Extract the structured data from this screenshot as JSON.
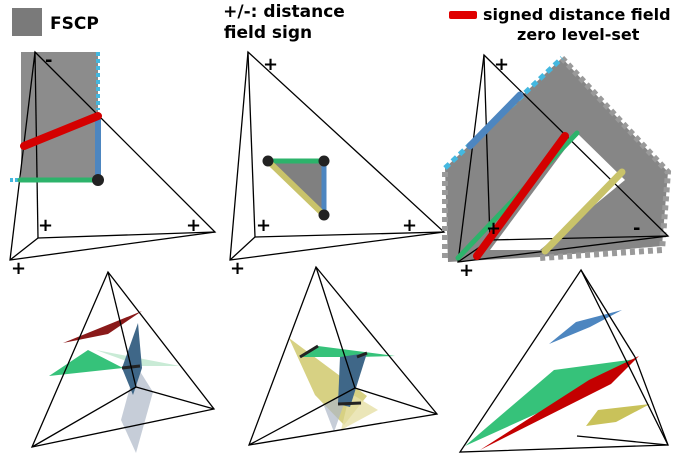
{
  "legend": {
    "fscp_label": "FSCP",
    "sign_label_line1": "+/-: distance",
    "sign_label_line2": "field sign",
    "sdf_label_line1": "signed distance field",
    "sdf_label_line2": "zero level-set",
    "fscp_color": "#7a7a7a",
    "sdf_color": "#e00000"
  },
  "signs": {
    "plus": "+",
    "minus": "-"
  },
  "colors": {
    "red_edge": "#d40000",
    "green_edge": "#2db36b",
    "blue_edge": "#4d86c0",
    "yellow_edge": "#c9c36a",
    "cyan_dash": "#44b8e0",
    "gray_region": "#808080",
    "dark_red_face": "#8a1a1a",
    "green_face": "#36c27a",
    "blue_face": "#3f6788",
    "yellow_face": "#c9c25a",
    "light_blue_face": "#aeb8c8"
  }
}
